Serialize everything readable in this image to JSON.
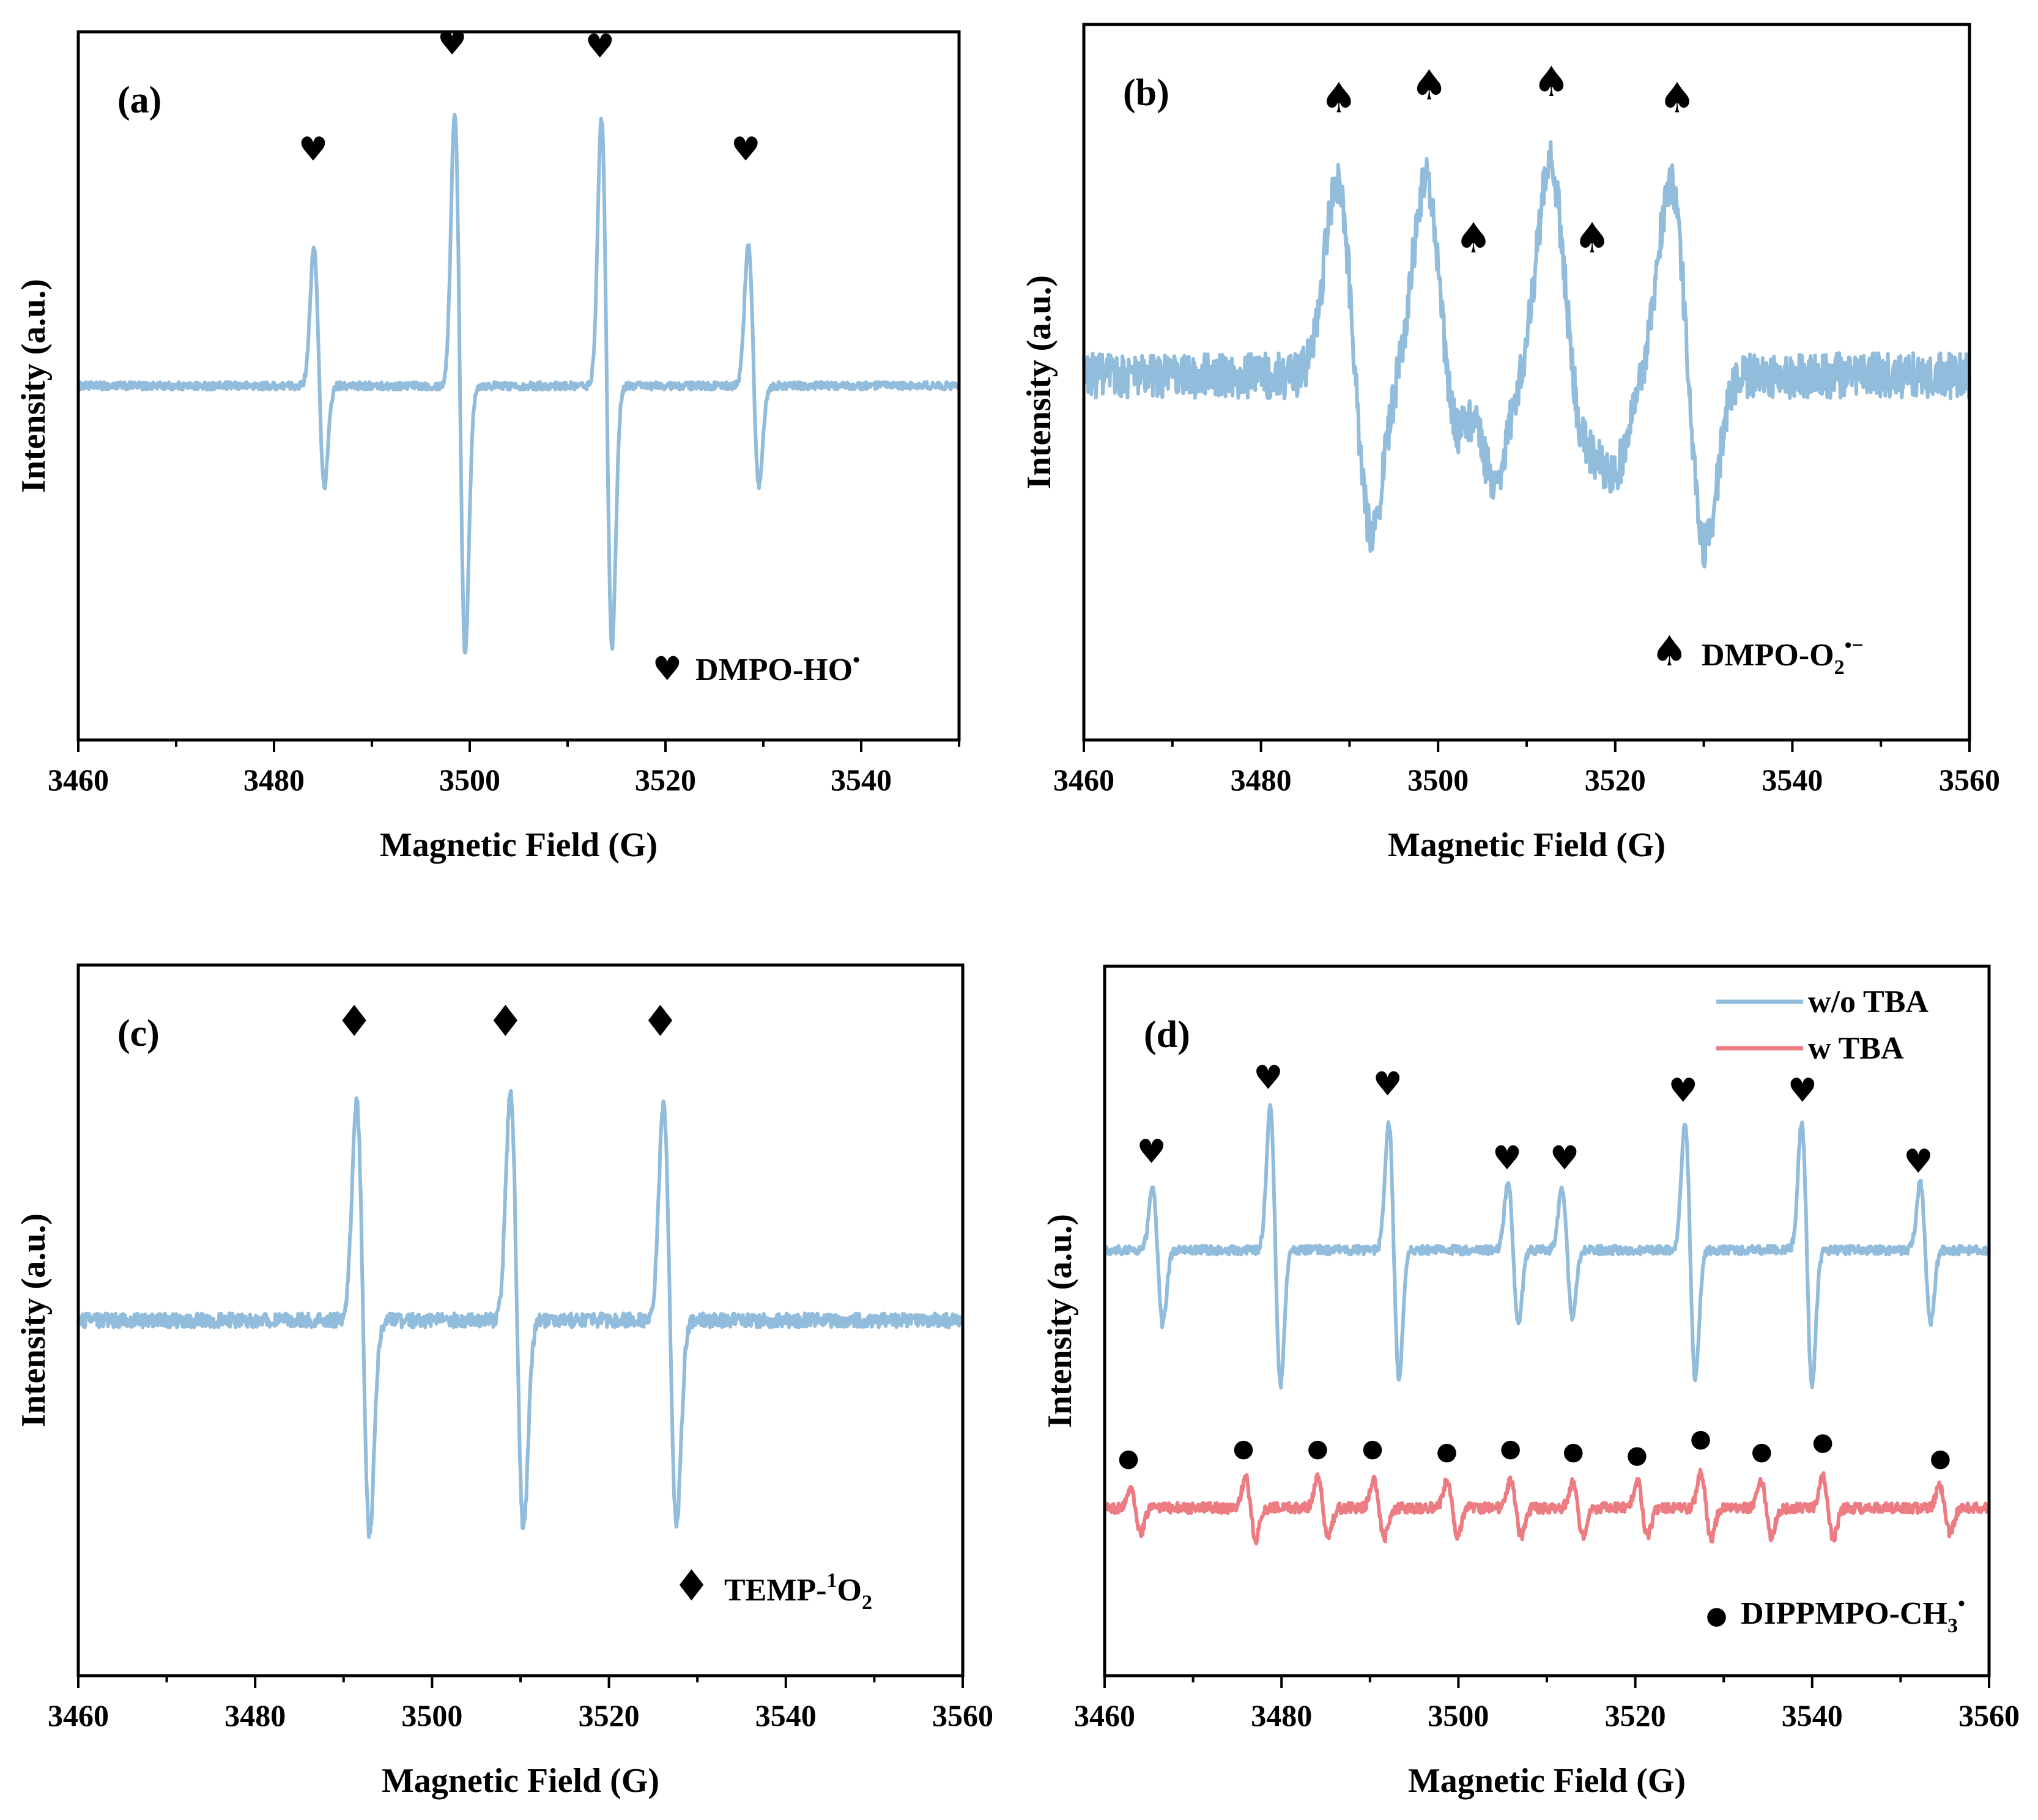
{
  "colors": {
    "blue": "#92bcdc",
    "red": "#ec7b82",
    "axis": "#000000"
  },
  "chart_data": [
    {
      "id": "a",
      "type": "line",
      "panel_label": "(a)",
      "xlabel": "Magnetic Field (G)",
      "ylabel": "Intensity (a.u.)",
      "xlim": [
        3460,
        3550
      ],
      "xticks": [
        3460,
        3480,
        3500,
        3520,
        3540
      ],
      "ylim": [
        -1.1,
        1.1
      ],
      "series": [
        {
          "name": "DMPO-HO•",
          "color": "#92bcdc",
          "baseline": 0,
          "noise": 0.012,
          "peaks": [
            {
              "x": 3484.6,
              "pos": 0.44,
              "neg": 0.33
            },
            {
              "x": 3499.0,
              "pos": 0.89,
              "neg": 0.87
            },
            {
              "x": 3514.0,
              "pos": 0.87,
              "neg": 0.85
            },
            {
              "x": 3529.0,
              "pos": 0.46,
              "neg": 0.33
            }
          ],
          "pw": 0.55
        }
      ],
      "markers": [
        {
          "glyph": "♥",
          "x": 3484.0,
          "y": 0.7
        },
        {
          "glyph": "♥",
          "x": 3498.2,
          "y": 1.03
        },
        {
          "glyph": "♥",
          "x": 3513.3,
          "y": 1.02
        },
        {
          "glyph": "♥",
          "x": 3528.2,
          "y": 0.7
        }
      ],
      "annotation": {
        "glyph": "♥",
        "text": "DMPO-HO",
        "sup": "•"
      }
    },
    {
      "id": "b",
      "type": "line",
      "panel_label": "(b)",
      "xlabel": "Magnetic Field (G)",
      "ylabel": "Intensity (a.u.)",
      "xlim": [
        3460,
        3560
      ],
      "xticks": [
        3460,
        3480,
        3500,
        3520,
        3540,
        3560
      ],
      "ylim": [
        -1.1,
        1.1
      ],
      "series": [
        {
          "name": "DMPO-O2•−",
          "color": "#92bcdc",
          "baseline": 0.02,
          "noise": 0.07,
          "peaks": [
            {
              "x": 3490.5,
              "pos": 0.62,
              "neg": 0.5
            },
            {
              "x": 3500.5,
              "pos": 0.62,
              "neg": 0.48
            },
            {
              "x": 3504.5,
              "pos": 0.3,
              "neg": 0.32
            },
            {
              "x": 3514.5,
              "pos": 0.66,
              "neg": 0.48
            },
            {
              "x": 3518.0,
              "pos": 0.28,
              "neg": 0.3
            },
            {
              "x": 3528.2,
              "pos": 0.62,
              "neg": 0.55
            }
          ],
          "pw": 2.0
        }
      ],
      "markers": [
        {
          "glyph": "♠",
          "x": 3488.8,
          "y": 0.83
        },
        {
          "glyph": "♠",
          "x": 3499.0,
          "y": 0.87
        },
        {
          "glyph": "♠",
          "x": 3504.0,
          "y": 0.4
        },
        {
          "glyph": "♠",
          "x": 3512.8,
          "y": 0.88
        },
        {
          "glyph": "♠",
          "x": 3517.4,
          "y": 0.4
        },
        {
          "glyph": "♠",
          "x": 3527.0,
          "y": 0.83
        }
      ],
      "annotation": {
        "glyph": "♠",
        "text": "DMPO-O",
        "sub": "2",
        "sup": "•−"
      }
    },
    {
      "id": "c",
      "type": "line",
      "panel_label": "(c)",
      "xlabel": "Magnetic Field (G)",
      "ylabel": "Intensity (a.u.)",
      "xlim": [
        3460,
        3560
      ],
      "xticks": [
        3460,
        3480,
        3500,
        3520,
        3540,
        3560
      ],
      "ylim": [
        -1.1,
        1.1
      ],
      "series": [
        {
          "name": "TEMP-1O2",
          "color": "#92bcdc",
          "baseline": 0,
          "noise": 0.022,
          "peaks": [
            {
              "x": 3492.2,
              "pos": 0.71,
              "neg": 0.7
            },
            {
              "x": 3509.6,
              "pos": 0.74,
              "neg": 0.68
            },
            {
              "x": 3526.9,
              "pos": 0.7,
              "neg": 0.66
            }
          ],
          "pw": 0.75
        }
      ],
      "markers": [
        {
          "glyph": "♦",
          "x": 3491.2,
          "y": 0.88
        },
        {
          "glyph": "♦",
          "x": 3508.3,
          "y": 0.88
        },
        {
          "glyph": "♦",
          "x": 3525.8,
          "y": 0.88
        }
      ],
      "annotation": {
        "glyph": "♦",
        "text": "TEMP-",
        "presup": "1",
        "text2": "O",
        "sub": "2"
      }
    },
    {
      "id": "d",
      "type": "line",
      "panel_label": "(d)",
      "xlabel": "Magnetic Field (G)",
      "ylabel": "Intensity (a.u.)",
      "xlim": [
        3460,
        3560
      ],
      "xticks": [
        3460,
        3480,
        3500,
        3520,
        3540,
        3560
      ],
      "ylim": [
        -1.1,
        1.1
      ],
      "legend": {
        "position": "top-right",
        "entries": [
          {
            "label": "w/o TBA",
            "color": "#92bcdc"
          },
          {
            "label": "w TBA",
            "color": "#ec7b82"
          }
        ]
      },
      "series": [
        {
          "name": "w/o TBA",
          "color": "#92bcdc",
          "baseline": 0.22,
          "noise": 0.014,
          "peaks": [
            {
              "x": 3466.0,
              "pos": 0.2,
              "neg": 0.24
            },
            {
              "x": 3479.3,
              "pos": 0.46,
              "neg": 0.44
            },
            {
              "x": 3492.7,
              "pos": 0.42,
              "neg": 0.42
            },
            {
              "x": 3506.2,
              "pos": 0.22,
              "neg": 0.24
            },
            {
              "x": 3512.3,
              "pos": 0.2,
              "neg": 0.22
            },
            {
              "x": 3526.2,
              "pos": 0.42,
              "neg": 0.42
            },
            {
              "x": 3539.4,
              "pos": 0.42,
              "neg": 0.44
            },
            {
              "x": 3552.8,
              "pos": 0.22,
              "neg": 0.24
            }
          ],
          "pw": 0.6
        },
        {
          "name": "w TBA",
          "color": "#ec7b82",
          "baseline": -0.58,
          "noise": 0.016,
          "peaks": [
            {
              "x": 3463.5,
              "pos": 0.07,
              "neg": 0.08
            },
            {
              "x": 3476.5,
              "pos": 0.1,
              "neg": 0.1
            },
            {
              "x": 3484.7,
              "pos": 0.1,
              "neg": 0.1
            },
            {
              "x": 3491.0,
              "pos": 0.1,
              "neg": 0.1
            },
            {
              "x": 3499.3,
              "pos": 0.09,
              "neg": 0.09
            },
            {
              "x": 3506.5,
              "pos": 0.09,
              "neg": 0.09
            },
            {
              "x": 3513.5,
              "pos": 0.08,
              "neg": 0.09
            },
            {
              "x": 3520.8,
              "pos": 0.09,
              "neg": 0.09
            },
            {
              "x": 3528.0,
              "pos": 0.11,
              "neg": 0.1
            },
            {
              "x": 3534.8,
              "pos": 0.09,
              "neg": 0.09
            },
            {
              "x": 3541.8,
              "pos": 0.1,
              "neg": 0.1
            },
            {
              "x": 3555.0,
              "pos": 0.07,
              "neg": 0.08
            }
          ],
          "pw": 0.6
        }
      ],
      "markers": [
        {
          "glyph": "♥",
          "x": 3465.3,
          "y": 0.49
        },
        {
          "glyph": "♥",
          "x": 3478.5,
          "y": 0.72
        },
        {
          "glyph": "♥",
          "x": 3492.0,
          "y": 0.7
        },
        {
          "glyph": "♥",
          "x": 3505.5,
          "y": 0.47
        },
        {
          "glyph": "♥",
          "x": 3512.0,
          "y": 0.47
        },
        {
          "glyph": "♥",
          "x": 3525.4,
          "y": 0.68
        },
        {
          "glyph": "♥",
          "x": 3538.9,
          "y": 0.68
        },
        {
          "glyph": "♥",
          "x": 3552.0,
          "y": 0.46
        },
        {
          "glyph": "●",
          "x": 3462.7,
          "y": -0.45
        },
        {
          "glyph": "●",
          "x": 3475.7,
          "y": -0.42
        },
        {
          "glyph": "●",
          "x": 3484.1,
          "y": -0.42
        },
        {
          "glyph": "●",
          "x": 3490.3,
          "y": -0.42
        },
        {
          "glyph": "●",
          "x": 3498.7,
          "y": -0.43
        },
        {
          "glyph": "●",
          "x": 3505.9,
          "y": -0.42
        },
        {
          "glyph": "●",
          "x": 3513.0,
          "y": -0.43
        },
        {
          "glyph": "●",
          "x": 3520.2,
          "y": -0.44
        },
        {
          "glyph": "●",
          "x": 3527.4,
          "y": -0.39
        },
        {
          "glyph": "●",
          "x": 3534.3,
          "y": -0.43
        },
        {
          "glyph": "●",
          "x": 3541.2,
          "y": -0.4
        },
        {
          "glyph": "●",
          "x": 3554.5,
          "y": -0.45
        }
      ],
      "annotation": {
        "glyph": "●",
        "text": "DIPPMPO-CH",
        "sub": "3",
        "sup": "•"
      }
    }
  ]
}
